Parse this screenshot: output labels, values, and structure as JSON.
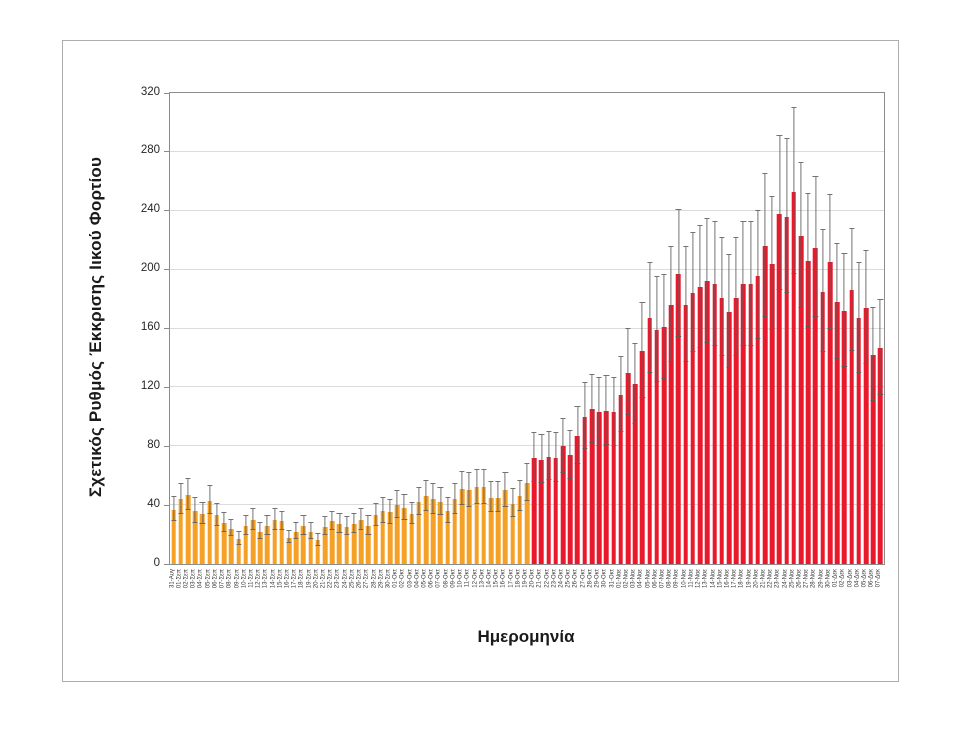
{
  "chart_data": {
    "type": "bar",
    "title": "",
    "xlabel": "Ημερομηνία",
    "ylabel": "Σχετικός Ρυθμός Έκκρισης Ιικού Φορτίου",
    "ylim": [
      0,
      320
    ],
    "ytick_step": 40,
    "grid": true,
    "legend": "none",
    "error_bars": true,
    "first_red_index": 50,
    "first_red_category": "20-Οκτ",
    "colors": {
      "early_bars": "#F4A126",
      "late_bars": "#E9192B",
      "error_bar": "#5B5B5B",
      "gridline": "#DCDCDC",
      "axis": "#8C8C8C"
    },
    "categories": [
      "31-Αυγ",
      "01-Σεπ",
      "02-Σεπ",
      "03-Σεπ",
      "04-Σεπ",
      "05-Σεπ",
      "06-Σεπ",
      "07-Σεπ",
      "08-Σεπ",
      "09-Σεπ",
      "10-Σεπ",
      "11-Σεπ",
      "12-Σεπ",
      "13-Σεπ",
      "14-Σεπ",
      "15-Σεπ",
      "16-Σεπ",
      "17-Σεπ",
      "18-Σεπ",
      "19-Σεπ",
      "20-Σεπ",
      "21-Σεπ",
      "22-Σεπ",
      "23-Σεπ",
      "24-Σεπ",
      "25-Σεπ",
      "26-Σεπ",
      "27-Σεπ",
      "28-Σεπ",
      "29-Σεπ",
      "30-Σεπ",
      "01-Οκτ",
      "02-Οκτ",
      "03-Οκτ",
      "04-Οκτ",
      "05-Οκτ",
      "06-Οκτ",
      "07-Οκτ",
      "08-Οκτ",
      "09-Οκτ",
      "10-Οκτ",
      "11-Οκτ",
      "12-Οκτ",
      "13-Οκτ",
      "14-Οκτ",
      "15-Οκτ",
      "16-Οκτ",
      "17-Οκτ",
      "18-Οκτ",
      "19-Οκτ",
      "20-Οκτ",
      "21-Οκτ",
      "22-Οκτ",
      "23-Οκτ",
      "24-Οκτ",
      "25-Οκτ",
      "26-Οκτ",
      "27-Οκτ",
      "28-Οκτ",
      "29-Οκτ",
      "30-Οκτ",
      "31-Οκτ",
      "01-Νοε",
      "02-Νοε",
      "03-Νοε",
      "04-Νοε",
      "05-Νοε",
      "06-Νοε",
      "07-Νοε",
      "08-Νοε",
      "09-Νοε",
      "10-Νοε",
      "11-Νοε",
      "12-Νοε",
      "13-Νοε",
      "14-Νοε",
      "15-Νοε",
      "16-Νοε",
      "17-Νοε",
      "18-Νοε",
      "19-Νοε",
      "20-Νοε",
      "21-Νοε",
      "22-Νοε",
      "23-Νοε",
      "24-Νοε",
      "25-Νοε",
      "26-Νοε",
      "27-Νοε",
      "28-Νοε",
      "29-Νοε",
      "30-Νοε",
      "01-Δεκ",
      "02-Δεκ",
      "03-Δεκ",
      "04-Δεκ",
      "05-Δεκ",
      "06-Δεκ",
      "07-Δεκ"
    ],
    "values": [
      37,
      44,
      47,
      36,
      34,
      43,
      33,
      28,
      24,
      17,
      26,
      30,
      22,
      26,
      30,
      29,
      18,
      22,
      26,
      22,
      16,
      25,
      29,
      27,
      25,
      27,
      30,
      26,
      33,
      36,
      35,
      40,
      38,
      34,
      42,
      46,
      44,
      42,
      36,
      44,
      51,
      50,
      52,
      52,
      45,
      45,
      50,
      41,
      46,
      55,
      72,
      71,
      73,
      72,
      80,
      74,
      87,
      100,
      105,
      103,
      104,
      103,
      115,
      130,
      122,
      145,
      167,
      159,
      161,
      176,
      197,
      176,
      184,
      188,
      192,
      190,
      181,
      171,
      181,
      190,
      190,
      196,
      216,
      204,
      238,
      236,
      253,
      223,
      206,
      215,
      185,
      205,
      178,
      172,
      186,
      167,
      174,
      142,
      147
    ],
    "err_lo": [
      29,
      34,
      37,
      28,
      27,
      34,
      26,
      22,
      19,
      13,
      20,
      23,
      17,
      20,
      23,
      23,
      14,
      17,
      20,
      17,
      12,
      20,
      23,
      21,
      20,
      21,
      23,
      20,
      26,
      28,
      27,
      31,
      30,
      27,
      33,
      36,
      34,
      33,
      28,
      34,
      40,
      39,
      41,
      41,
      35,
      35,
      39,
      32,
      36,
      43,
      56,
      55,
      57,
      56,
      62,
      58,
      68,
      78,
      82,
      80,
      81,
      80,
      90,
      101,
      95,
      113,
      130,
      124,
      126,
      137,
      154,
      137,
      144,
      147,
      150,
      148,
      141,
      133,
      141,
      148,
      148,
      153,
      168,
      159,
      186,
      184,
      197,
      174,
      161,
      168,
      144,
      160,
      139,
      134,
      145,
      130,
      136,
      111,
      115
    ],
    "err_hi": [
      45,
      54,
      57,
      44,
      41,
      52,
      40,
      34,
      29,
      21,
      32,
      37,
      27,
      32,
      37,
      35,
      22,
      27,
      32,
      27,
      20,
      31,
      35,
      33,
      31,
      33,
      37,
      32,
      40,
      44,
      43,
      49,
      46,
      41,
      51,
      56,
      54,
      51,
      44,
      54,
      62,
      61,
      63,
      63,
      55,
      55,
      61,
      50,
      56,
      67,
      88,
      87,
      89,
      88,
      98,
      90,
      106,
      122,
      128,
      126,
      127,
      126,
      140,
      159,
      149,
      177,
      204,
      194,
      196,
      215,
      240,
      215,
      224,
      229,
      234,
      232,
      221,
      209,
      221,
      232,
      232,
      239,
      264,
      249,
      290,
      288,
      309,
      272,
      251,
      262,
      226,
      250,
      217,
      210,
      227,
      204,
      212,
      173,
      179
    ]
  }
}
